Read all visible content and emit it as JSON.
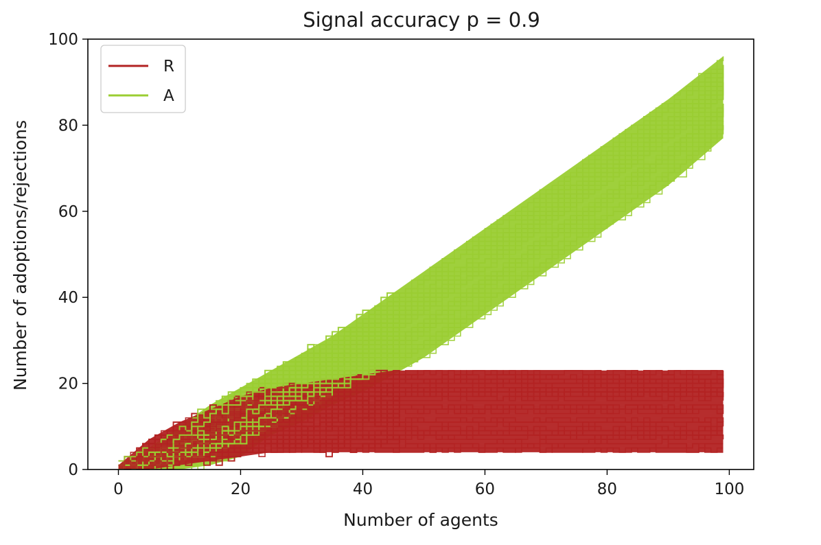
{
  "chart_data": {
    "type": "line",
    "title": "Signal accuracy p =  0.9",
    "xlabel": "Number of agents",
    "ylabel": "Number of adoptions/rejections",
    "xlim": [
      -5,
      104
    ],
    "ylim": [
      0,
      100
    ],
    "xticks": [
      0,
      20,
      40,
      60,
      80,
      100
    ],
    "yticks": [
      0,
      20,
      40,
      60,
      80,
      100
    ],
    "grid": false,
    "legend_position": "top-left",
    "series": [
      {
        "name": "R",
        "color": "#b22222",
        "description": "number of rejections; many overlapping simulation runs forming a band",
        "envelope": {
          "x": [
            0,
            5,
            10,
            15,
            20,
            25,
            30,
            35,
            40,
            45,
            50,
            60,
            70,
            80,
            90,
            99
          ],
          "upper": [
            1,
            7,
            11,
            14,
            17,
            19,
            20,
            21,
            22,
            23,
            23,
            23,
            23,
            23,
            23,
            23
          ],
          "lower": [
            0,
            0,
            1,
            2,
            3,
            4,
            4,
            4,
            4,
            4,
            4,
            4,
            4,
            4,
            4,
            4
          ]
        }
      },
      {
        "name": "A",
        "color": "#9acd32",
        "description": "number of adoptions; many overlapping simulation runs forming a band",
        "envelope": {
          "x": [
            0,
            5,
            10,
            15,
            20,
            25,
            30,
            35,
            40,
            45,
            50,
            60,
            70,
            80,
            90,
            99
          ],
          "upper": [
            1,
            5,
            10,
            15,
            19,
            23,
            27,
            31,
            36,
            41,
            46,
            56,
            66,
            76,
            86,
            96
          ],
          "lower": [
            0,
            0,
            0,
            1,
            3,
            8,
            11,
            15,
            18,
            22,
            26,
            36,
            46,
            56,
            66,
            77
          ]
        }
      }
    ],
    "legend": {
      "entries": [
        "R",
        "A"
      ]
    }
  }
}
